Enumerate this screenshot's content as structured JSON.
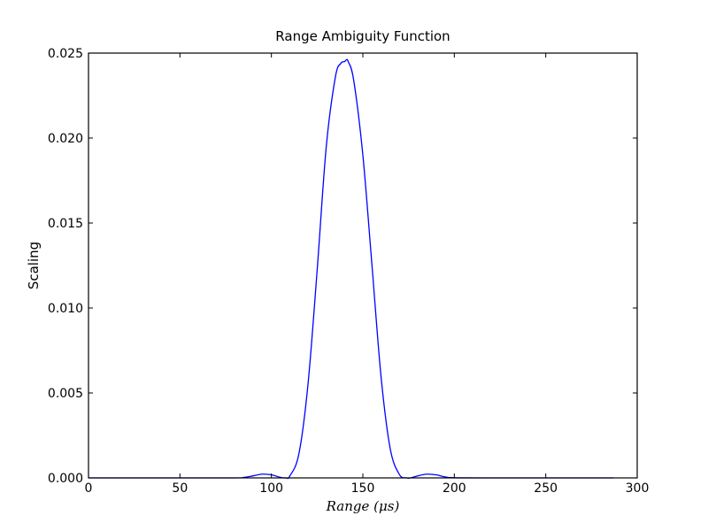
{
  "chart_data": {
    "type": "line",
    "title": "Range Ambiguity Function",
    "xlabel": "Range (μs)",
    "ylabel": "Scaling",
    "xlim": [
      0,
      300
    ],
    "ylim": [
      0,
      0.025
    ],
    "x_ticks": [
      "0",
      "50",
      "100",
      "150",
      "200",
      "250",
      "300"
    ],
    "y_ticks": [
      "0.000",
      "0.005",
      "0.010",
      "0.015",
      "0.020",
      "0.025"
    ],
    "grid": false,
    "series": [
      {
        "color": "#0000ff",
        "x": [
          0,
          50,
          80,
          85,
          90,
          95,
          100,
          105,
          108,
          110,
          115,
          120,
          125,
          130,
          135,
          138,
          140,
          141,
          142,
          145,
          150,
          155,
          160,
          165,
          170,
          174,
          176,
          180,
          185,
          190,
          195,
          200,
          220,
          250,
          287
        ],
        "y": [
          0,
          0,
          0,
          3e-05,
          0.00012,
          0.00022,
          0.00018,
          3e-05,
          0,
          0.0001,
          0.0014,
          0.0055,
          0.0122,
          0.0195,
          0.0236,
          0.0244,
          0.0245,
          0.0246,
          0.0245,
          0.0234,
          0.019,
          0.0125,
          0.0059,
          0.0017,
          0.0002,
          0,
          0,
          0.00012,
          0.00022,
          0.00018,
          6e-05,
          1e-05,
          0,
          0,
          0
        ]
      }
    ]
  }
}
